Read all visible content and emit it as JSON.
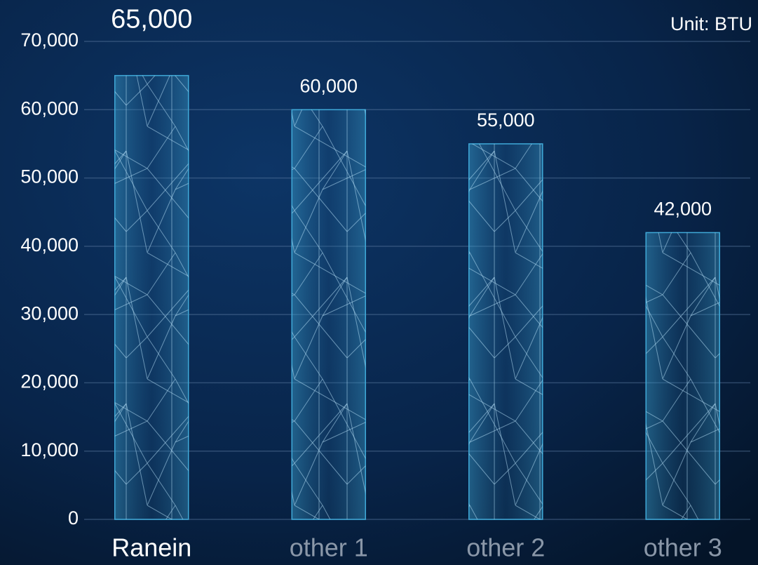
{
  "chart_data": {
    "type": "bar",
    "annotation": "Unit: BTU",
    "categories": [
      "Ranein",
      "other 1",
      "other 2",
      "other 3"
    ],
    "values": [
      65000,
      60000,
      55000,
      42000
    ],
    "value_labels": [
      "65,000",
      "60,000",
      "55,000",
      "42,000"
    ],
    "color": "#3fa9d8",
    "ylim": [
      0,
      70000
    ],
    "yticks": [
      0,
      {
        "value": 10000,
        "label": "10,000"
      },
      {
        "value": 20000,
        "label": "20,000"
      },
      {
        "value": 30000,
        "label": "30,000"
      },
      {
        "value": 40000,
        "label": "40,000"
      },
      {
        "value": 50000,
        "label": "50,000"
      },
      {
        "value": 60000,
        "label": "60,000"
      },
      {
        "value": 70000,
        "label": "70,000"
      }
    ],
    "grid": true
  }
}
